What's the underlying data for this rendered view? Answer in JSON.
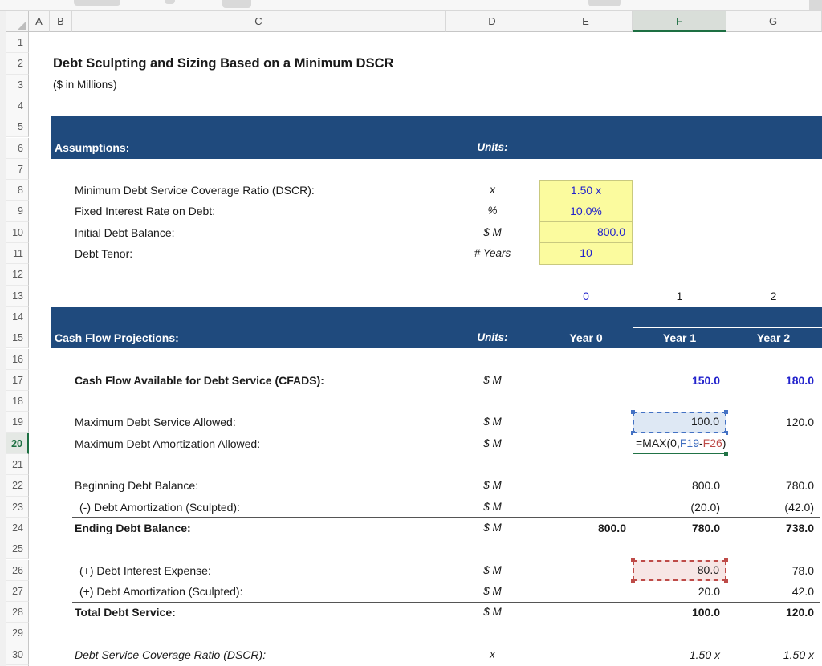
{
  "sheet": {
    "title": "Debt Sculpting and Sizing Based on a Minimum DSCR",
    "subtitle": "($ in Millions)"
  },
  "grid": {
    "columns": [
      "A",
      "B",
      "C",
      "D",
      "E",
      "F",
      "G"
    ],
    "selected_column": "F",
    "selected_row": "20",
    "visible_rows": 31
  },
  "assumptions": {
    "header": "Assumptions:",
    "units_label": "Units:",
    "rows": [
      {
        "label": "Minimum Debt Service Coverage Ratio (DSCR):",
        "unit": "x",
        "value": "1.50 x"
      },
      {
        "label": "Fixed Interest Rate on Debt:",
        "unit": "%",
        "value": "10.0%"
      },
      {
        "label": "Initial Debt Balance:",
        "unit": "$ M",
        "value": "800.0"
      },
      {
        "label": "Debt Tenor:",
        "unit": "# Years",
        "value": "10"
      }
    ]
  },
  "year_numbers": {
    "year0": "0",
    "year1": "1",
    "year2": "2"
  },
  "projections": {
    "header": "Cash Flow Projections:",
    "units_label": "Units:",
    "year_headers": [
      "Year 0",
      "Year 1",
      "Year 2"
    ],
    "cfads": {
      "label": "Cash Flow Available for Debt Service (CFADS):",
      "unit": "$ M",
      "year1": "150.0",
      "year2": "180.0"
    },
    "max_debt_service": {
      "label": "Maximum Debt Service Allowed:",
      "unit": "$ M",
      "year1": "100.0",
      "year2": "120.0"
    },
    "max_amortization": {
      "label": "Maximum Debt Amortization Allowed:",
      "unit": "$ M"
    },
    "beginning_balance": {
      "label": "Beginning Debt Balance:",
      "unit": "$ M",
      "year1": "800.0",
      "year2": "780.0"
    },
    "amortization_sculpted": {
      "label": "(-) Debt Amortization (Sculpted):",
      "unit": "$ M",
      "year1": "(20.0)",
      "year2": "(42.0)"
    },
    "ending_balance": {
      "label": "Ending Debt Balance:",
      "unit": "$ M",
      "year0": "800.0",
      "year1": "780.0",
      "year2": "738.0"
    },
    "interest_expense": {
      "label": "(+) Debt Interest Expense:",
      "unit": "$ M",
      "year1": "80.0",
      "year2": "78.0"
    },
    "amortization_add": {
      "label": "(+) Debt Amortization (Sculpted):",
      "unit": "$ M",
      "year1": "20.0",
      "year2": "42.0"
    },
    "total_debt_service": {
      "label": "Total Debt Service:",
      "unit": "$ M",
      "year1": "100.0",
      "year2": "120.0"
    },
    "dscr": {
      "label": "Debt Service Coverage Ratio (DSCR):",
      "unit": "x",
      "year1": "1.50 x",
      "year2": "1.50 x"
    }
  },
  "formula": {
    "prefix": "=MAX(0,",
    "ref1": "F19",
    "operator": "-",
    "ref2": "F26",
    "suffix": ")"
  },
  "colors": {
    "banner_blue": "#1f4a7d",
    "input_fill": "#fbfb9e",
    "input_text": "#2222cc",
    "reference_blue": "#3e6dbf",
    "reference_red": "#be4b48",
    "edit_green": "#217346"
  }
}
